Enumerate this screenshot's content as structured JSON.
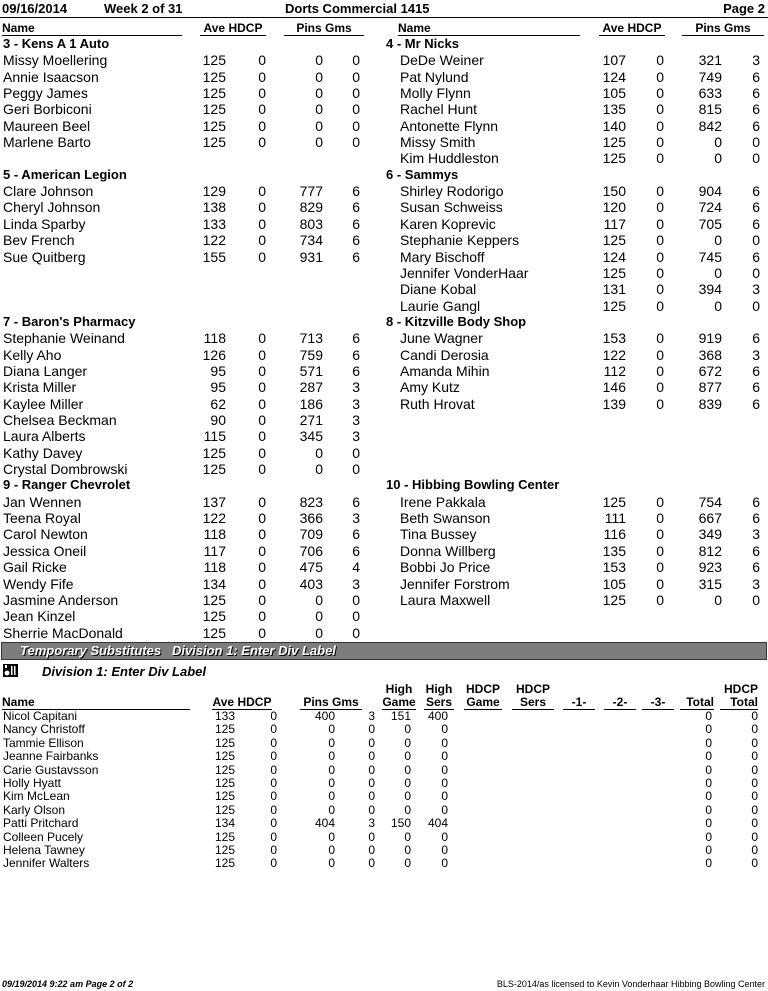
{
  "header": {
    "date": "09/16/2014",
    "week": "Week 2 of 31",
    "league": "Dorts Commercial 1415",
    "page": "Page 2"
  },
  "columns": {
    "name": "Name",
    "ave": "Ave",
    "hdcp": "HDCP",
    "pins": "Pins",
    "gms": "Gms"
  },
  "pairs": [
    [
      {
        "team": "3 - Kens A 1 Auto",
        "players": [
          [
            "Missy Moellering",
            "125",
            "0",
            "0",
            "0"
          ],
          [
            "Annie Isaacson",
            "125",
            "0",
            "0",
            "0"
          ],
          [
            "Peggy James",
            "125",
            "0",
            "0",
            "0"
          ],
          [
            "Geri Borbiconi",
            "125",
            "0",
            "0",
            "0"
          ],
          [
            "Maureen Beel",
            "125",
            "0",
            "0",
            "0"
          ],
          [
            "Marlene Barto",
            "125",
            "0",
            "0",
            "0"
          ]
        ]
      },
      {
        "team": "4 - Mr Nicks",
        "players": [
          [
            "DeDe Weiner",
            "107",
            "0",
            "321",
            "3"
          ],
          [
            "Pat Nylund",
            "124",
            "0",
            "749",
            "6"
          ],
          [
            "Molly Flynn",
            "105",
            "0",
            "633",
            "6"
          ],
          [
            "Rachel Hunt",
            "135",
            "0",
            "815",
            "6"
          ],
          [
            "Antonette Flynn",
            "140",
            "0",
            "842",
            "6"
          ],
          [
            "Missy Smith",
            "125",
            "0",
            "0",
            "0"
          ],
          [
            "Kim Huddleston",
            "125",
            "0",
            "0",
            "0"
          ]
        ]
      }
    ],
    [
      {
        "team": "5 - American Legion",
        "players": [
          [
            "Clare Johnson",
            "129",
            "0",
            "777",
            "6"
          ],
          [
            "Cheryl Johnson",
            "138",
            "0",
            "829",
            "6"
          ],
          [
            "Linda Sparby",
            "133",
            "0",
            "803",
            "6"
          ],
          [
            "Bev French",
            "122",
            "0",
            "734",
            "6"
          ],
          [
            "Sue Quitberg",
            "155",
            "0",
            "931",
            "6"
          ]
        ]
      },
      {
        "team": "6 - Sammys",
        "players": [
          [
            "Shirley Rodorigo",
            "150",
            "0",
            "904",
            "6"
          ],
          [
            "Susan Schweiss",
            "120",
            "0",
            "724",
            "6"
          ],
          [
            "Karen Koprevic",
            "117",
            "0",
            "705",
            "6"
          ],
          [
            "Stephanie Keppers",
            "125",
            "0",
            "0",
            "0"
          ],
          [
            "Mary Bischoff",
            "124",
            "0",
            "745",
            "6"
          ],
          [
            "Jennifer VonderHaar",
            "125",
            "0",
            "0",
            "0"
          ],
          [
            "Diane Kobal",
            "131",
            "0",
            "394",
            "3"
          ],
          [
            "Laurie Gangl",
            "125",
            "0",
            "0",
            "0"
          ]
        ]
      }
    ],
    [
      {
        "team": "7 - Baron's Pharmacy",
        "players": [
          [
            "Stephanie Weinand",
            "118",
            "0",
            "713",
            "6"
          ],
          [
            "Kelly Aho",
            "126",
            "0",
            "759",
            "6"
          ],
          [
            "Diana Langer",
            "95",
            "0",
            "571",
            "6"
          ],
          [
            "Krista Miller",
            "95",
            "0",
            "287",
            "3"
          ],
          [
            "Kaylee Miller",
            "62",
            "0",
            "186",
            "3"
          ],
          [
            "Chelsea Beckman",
            "90",
            "0",
            "271",
            "3"
          ],
          [
            "Laura Alberts",
            "115",
            "0",
            "345",
            "3"
          ],
          [
            "Kathy Davey",
            "125",
            "0",
            "0",
            "0"
          ],
          [
            "Crystal Dombrowski",
            "125",
            "0",
            "0",
            "0"
          ]
        ]
      },
      {
        "team": "8 - Kitzville Body Shop",
        "players": [
          [
            "June Wagner",
            "153",
            "0",
            "919",
            "6"
          ],
          [
            "Candi Derosia",
            "122",
            "0",
            "368",
            "3"
          ],
          [
            "Amanda Mihin",
            "112",
            "0",
            "672",
            "6"
          ],
          [
            "Amy Kutz",
            "146",
            "0",
            "877",
            "6"
          ],
          [
            "Ruth Hrovat",
            "139",
            "0",
            "839",
            "6"
          ]
        ]
      }
    ],
    [
      {
        "team": "9 - Ranger Chevrolet",
        "players": [
          [
            "Jan Wennen",
            "137",
            "0",
            "823",
            "6"
          ],
          [
            "Teena Royal",
            "122",
            "0",
            "366",
            "3"
          ],
          [
            "Carol Newton",
            "118",
            "0",
            "709",
            "6"
          ],
          [
            "Jessica Oneil",
            "117",
            "0",
            "706",
            "6"
          ],
          [
            "Gail Ricke",
            "118",
            "0",
            "475",
            "4"
          ],
          [
            "Wendy Fife",
            "134",
            "0",
            "403",
            "3"
          ],
          [
            "Jasmine Anderson",
            "125",
            "0",
            "0",
            "0"
          ],
          [
            "Jean Kinzel",
            "125",
            "0",
            "0",
            "0"
          ],
          [
            "Sherrie MacDonald",
            "125",
            "0",
            "0",
            "0"
          ]
        ]
      },
      {
        "team": "10 - Hibbing Bowling Center",
        "players": [
          [
            "Irene Pakkala",
            "125",
            "0",
            "754",
            "6"
          ],
          [
            "Beth Swanson",
            "111",
            "0",
            "667",
            "6"
          ],
          [
            "Tina Bussey",
            "116",
            "0",
            "349",
            "3"
          ],
          [
            "Donna Willberg",
            "135",
            "0",
            "812",
            "6"
          ],
          [
            "Bobbi Jo Price",
            "153",
            "0",
            "923",
            "6"
          ],
          [
            "Jennifer Forstrom",
            "105",
            "0",
            "315",
            "3"
          ],
          [
            "Laura Maxwell",
            "125",
            "0",
            "0",
            "0"
          ]
        ]
      }
    ]
  ],
  "subs": {
    "bar_title": "Temporary Substitutes   Division 1: Enter Div Label",
    "division_label": "Division 1: Enter Div Label",
    "division_icon": "bowling-pins-icon",
    "headers": {
      "name": "Name",
      "ave": "Ave",
      "hdcp": "HDCP",
      "pins": "Pins",
      "gms": "Gms",
      "high_game": "High Game",
      "high_sers": "High Sers",
      "hdcp_game": "HDCP Game",
      "hdcp_sers": "HDCP Sers",
      "g1": "-1-",
      "g2": "-2-",
      "g3": "-3-",
      "total": "Total",
      "hdcp_total": "HDCP Total"
    },
    "rows": [
      [
        "Nicol Capitani",
        "133",
        "0",
        "400",
        "3",
        "151",
        "400",
        "0",
        "0"
      ],
      [
        "Nancy Christoff",
        "125",
        "0",
        "0",
        "0",
        "0",
        "0",
        "0",
        "0"
      ],
      [
        "Tammie Ellison",
        "125",
        "0",
        "0",
        "0",
        "0",
        "0",
        "0",
        "0"
      ],
      [
        "Jeanne Fairbanks",
        "125",
        "0",
        "0",
        "0",
        "0",
        "0",
        "0",
        "0"
      ],
      [
        "Carie Gustavsson",
        "125",
        "0",
        "0",
        "0",
        "0",
        "0",
        "0",
        "0"
      ],
      [
        "Holly Hyatt",
        "125",
        "0",
        "0",
        "0",
        "0",
        "0",
        "0",
        "0"
      ],
      [
        "Kim McLean",
        "125",
        "0",
        "0",
        "0",
        "0",
        "0",
        "0",
        "0"
      ],
      [
        "Karly Olson",
        "125",
        "0",
        "0",
        "0",
        "0",
        "0",
        "0",
        "0"
      ],
      [
        "Patti Pritchard",
        "134",
        "0",
        "404",
        "3",
        "150",
        "404",
        "0",
        "0"
      ],
      [
        "Colleen Pucely",
        "125",
        "0",
        "0",
        "0",
        "0",
        "0",
        "0",
        "0"
      ],
      [
        "Helena Tawney",
        "125",
        "0",
        "0",
        "0",
        "0",
        "0",
        "0",
        "0"
      ],
      [
        "Jennifer Walters",
        "125",
        "0",
        "0",
        "0",
        "0",
        "0",
        "0",
        "0"
      ]
    ]
  },
  "footer": {
    "printed": "09/19/2014  9:22 am  Page 2 of 2",
    "license": "BLS-2014/as licensed to Kevin Vonderhaar  Hibbing Bowling Center"
  }
}
